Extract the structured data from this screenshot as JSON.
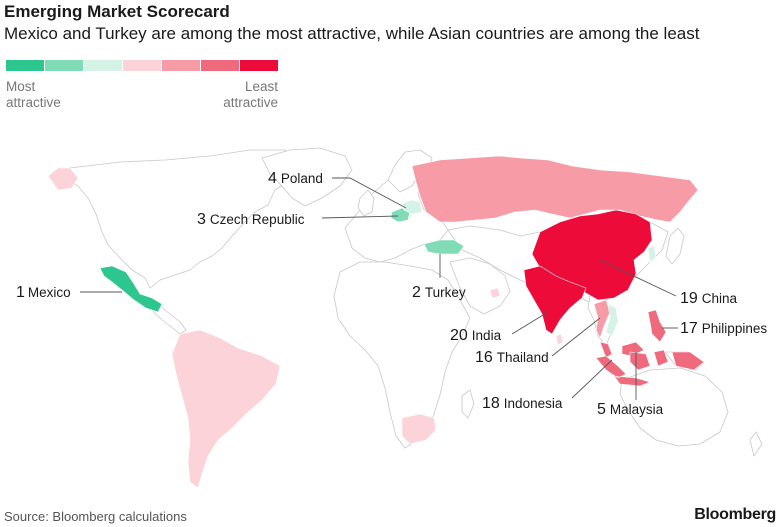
{
  "title": "Emerging Market Scorecard",
  "subtitle": "Mexico and Turkey are among the most attractive, while Asian countries are among the least",
  "legend": {
    "colors": [
      "#2ec68f",
      "#7fdcb6",
      "#d4f3e6",
      "#fcd3d9",
      "#f79ba7",
      "#f06a7e",
      "#ec0b39"
    ],
    "left_label_1": "Most",
    "left_label_2": "attractive",
    "right_label_1": "Least",
    "right_label_2": "attractive"
  },
  "colors": {
    "land": "#ffffff",
    "border": "#c8c8c8",
    "leader": "#555555"
  },
  "countries": [
    {
      "rank": "1",
      "name": "Mexico",
      "color": "#2ec68f"
    },
    {
      "rank": "2",
      "name": "Turkey",
      "color": "#7fdcb6"
    },
    {
      "rank": "3",
      "name": "Czech Republic",
      "color": "#7fdcb6"
    },
    {
      "rank": "4",
      "name": "Poland",
      "color": "#d4f3e6"
    },
    {
      "rank": "5",
      "name": "Malaysia",
      "color": "#f06a7e"
    },
    {
      "rank": "16",
      "name": "Thailand",
      "color": "#f79ba7"
    },
    {
      "rank": "17",
      "name": "Philippines",
      "color": "#f06a7e"
    },
    {
      "rank": "18",
      "name": "Indonesia",
      "color": "#f06a7e"
    },
    {
      "rank": "19",
      "name": "China",
      "color": "#ec0b39"
    },
    {
      "rank": "20",
      "name": "India",
      "color": "#ec0b39"
    }
  ],
  "other_colored": {
    "russia": "#f79ba7",
    "south_america": "#fcd3d9",
    "south_africa": "#fcd3d9",
    "alaska": "#fcd3d9",
    "vietnam": "#d4f3e6",
    "korea": "#d4f3e6",
    "uae": "#fcd3d9",
    "sri_lanka": "#fcd3d9"
  },
  "source": "Source: Bloomberg calculations",
  "brand": "Bloomberg"
}
